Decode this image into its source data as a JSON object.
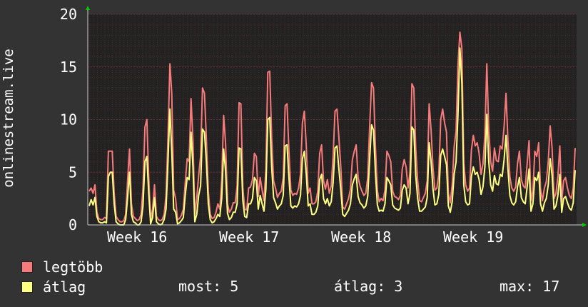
{
  "chart_data": {
    "type": "line",
    "ylabel": "onlinestream.live",
    "ylim": [
      0,
      20
    ],
    "yticks": [
      0,
      5,
      10,
      15,
      20
    ],
    "xticks": [
      "Week 16",
      "Week 17",
      "Week 18",
      "Week 19"
    ],
    "grid": true,
    "colors": {
      "background": "#333333",
      "plot_bg": "#222222",
      "grid": "#6a2e2e",
      "axis": "#cccccc"
    },
    "series": [
      {
        "name": "legtöbb",
        "color": "#f77b7b",
        "values": [
          3.2,
          3.5,
          3,
          3.8,
          1.2,
          0.6,
          0.5,
          0.5,
          0.7,
          0.6,
          7,
          7,
          7,
          3,
          0.8,
          0.5,
          0.3,
          0.3,
          0.4,
          1,
          4.2,
          7.2,
          2,
          0.8,
          0.6,
          0.4,
          0.5,
          1,
          3.5,
          9.3,
          10,
          4.5,
          0.5,
          1.5,
          3.8,
          0.8,
          0.5,
          0.4,
          0.5,
          1,
          2.8,
          8.3,
          15.3,
          12.5,
          3.3,
          2.5,
          0.5,
          0.6,
          0.9,
          1.5,
          4,
          6.3,
          6,
          12,
          8,
          1,
          2.5,
          4.7,
          6.5,
          13,
          12.5,
          8.2,
          3.2,
          1,
          0.6,
          0.7,
          1.2,
          2,
          1.5,
          4.2,
          10.4,
          7.8,
          2,
          1.2,
          1.5,
          2.1,
          2.1,
          3.7,
          11.6,
          11.5,
          3.5,
          1.5,
          1.4,
          3.5,
          3.6,
          4.3,
          6.8,
          6.5,
          2.7,
          4.5,
          3.3,
          2.3,
          5.3,
          14.5,
          14.6,
          8.3,
          4.2,
          3.5,
          2.6,
          3,
          3.2,
          4.5,
          11.3,
          11.5,
          7,
          3.3,
          2.8,
          3,
          2.9,
          3.5,
          4.8,
          9.7,
          10.8,
          7.5,
          3,
          3.5,
          2,
          2,
          2.2,
          3.2,
          6.8,
          7.6,
          4.2,
          3.4,
          4.3,
          3,
          3.7,
          6.5,
          10.8,
          11,
          8.3,
          5.5,
          1.7,
          1.5,
          2,
          2.5,
          3.4,
          6.2,
          7,
          7.6,
          4.5,
          3.7,
          3.2,
          2.8,
          3,
          4.5,
          9.3,
          13.5,
          13,
          7.5,
          3.3,
          2.2,
          2.5,
          2.3,
          3.3,
          7,
          6.6,
          6,
          3.2,
          2.7,
          2.6,
          2.4,
          2.8,
          5.3,
          6.2,
          5.5,
          3.5,
          5,
          13.4,
          13,
          7.3,
          4.2,
          2.3,
          2.2,
          2.6,
          3,
          4.2,
          11.5,
          9,
          5.4,
          3.3,
          3.5,
          4.8,
          10,
          11,
          9.7,
          8.8,
          3,
          2.1,
          3.8,
          7.4,
          8.9,
          15.2,
          18.3,
          16.8,
          5.9,
          3.8,
          3.2,
          3.5,
          7.1,
          8.5,
          7.5,
          7.8,
          6.8,
          4.8,
          5.8,
          8.5,
          15.3,
          9.1,
          6,
          5.1,
          7.3,
          6.1,
          6,
          7.5,
          7.2,
          9.3,
          12.5,
          8,
          4.6,
          3.5,
          3.2,
          3.6,
          5.8,
          7,
          4.3,
          3.7,
          3.5,
          5.8,
          8,
          2.3,
          3.3,
          7,
          6.5,
          7.8,
          3.4,
          2.3,
          3.5,
          4.1,
          6,
          9.4,
          7.3,
          2.5,
          3,
          4.6,
          7.5,
          2.2,
          4.2,
          4.5,
          3.5,
          2.8,
          2.5,
          3.5,
          7.3
        ]
      },
      {
        "name": "átlag",
        "color": "#ffff80",
        "values": [
          1.8,
          2.4,
          1.9,
          2.6,
          0.8,
          0.3,
          0.2,
          0.2,
          0.3,
          0.2,
          4.6,
          5,
          5,
          2,
          0.3,
          0.1,
          0,
          0,
          0,
          0.5,
          2.6,
          5,
          1,
          0.3,
          0.2,
          0,
          0,
          0.3,
          1.8,
          6,
          6.5,
          3,
          0.1,
          0.7,
          2.6,
          0.3,
          0.1,
          0,
          0.1,
          0.5,
          1.5,
          6,
          11,
          7,
          1.5,
          1.2,
          0.1,
          0.2,
          0.4,
          0.7,
          2.8,
          4.5,
          4.3,
          8.8,
          5.5,
          0.3,
          1,
          2.8,
          3.7,
          9.1,
          8.8,
          6,
          2,
          0.5,
          0.2,
          0.3,
          0.6,
          1,
          0.8,
          2.5,
          7.2,
          5.1,
          1.1,
          0.5,
          0.7,
          1.2,
          1.2,
          2,
          7.3,
          7.2,
          2.3,
          0.8,
          0.7,
          2,
          2,
          2.5,
          4.5,
          4.2,
          1.5,
          2.8,
          2,
          1.3,
          3.4,
          10,
          10.2,
          5.5,
          2.6,
          2.1,
          1.5,
          1.8,
          2,
          2.8,
          7.5,
          7.6,
          4.5,
          1.8,
          1.6,
          1.8,
          1.7,
          2,
          2.8,
          6.3,
          7,
          4.8,
          1.8,
          2,
          1,
          1,
          1.2,
          1.8,
          4.3,
          4.8,
          2.5,
          2,
          2.5,
          1.8,
          2.2,
          4,
          7.3,
          7.5,
          5.3,
          3.3,
          1,
          0.8,
          1.1,
          1.4,
          2,
          3.8,
          4.4,
          4.8,
          2.7,
          2.1,
          1.9,
          1.6,
          1.8,
          2.7,
          6.2,
          9.5,
          9,
          5,
          1.9,
          1.3,
          1.4,
          1.3,
          2,
          4.5,
          4.2,
          3.8,
          1.9,
          1.6,
          1.5,
          1.4,
          1.6,
          3.3,
          3.8,
          3.5,
          2,
          3,
          9.3,
          9,
          4.7,
          2.5,
          1.3,
          1.3,
          1.5,
          1.7,
          2.6,
          7.8,
          6,
          3.4,
          1.9,
          2,
          2.9,
          6.6,
          7.2,
          6.5,
          5.7,
          1.8,
          1.2,
          2.2,
          4.8,
          6,
          10.5,
          16.8,
          13.5,
          3.8,
          2.2,
          1.9,
          2,
          4.6,
          5.5,
          4.8,
          5,
          4.3,
          2.9,
          3.6,
          5.5,
          10.5,
          6,
          3.8,
          3.2,
          4.7,
          3.9,
          3.8,
          4.8,
          4.6,
          6.2,
          8.5,
          5.3,
          2.8,
          2.1,
          1.9,
          2.2,
          3.6,
          4.5,
          2.6,
          2.2,
          2,
          3.6,
          5.3,
          1.3,
          2,
          4.5,
          4.2,
          5,
          2,
          1.3,
          2.1,
          2.5,
          3.8,
          6.3,
          4.7,
          1.5,
          1.8,
          2.8,
          4.8,
          1.2,
          2.5,
          2.7,
          2.1,
          1.6,
          1.4,
          2.1,
          5.2
        ]
      }
    ]
  },
  "legend": [
    {
      "label": "legtöbb",
      "color": "#f77b7b"
    },
    {
      "label": "átlag",
      "color": "#ffff80"
    }
  ],
  "stats": {
    "most": "most: 5",
    "atlag": "átlag: 3",
    "max": "max: 17"
  }
}
